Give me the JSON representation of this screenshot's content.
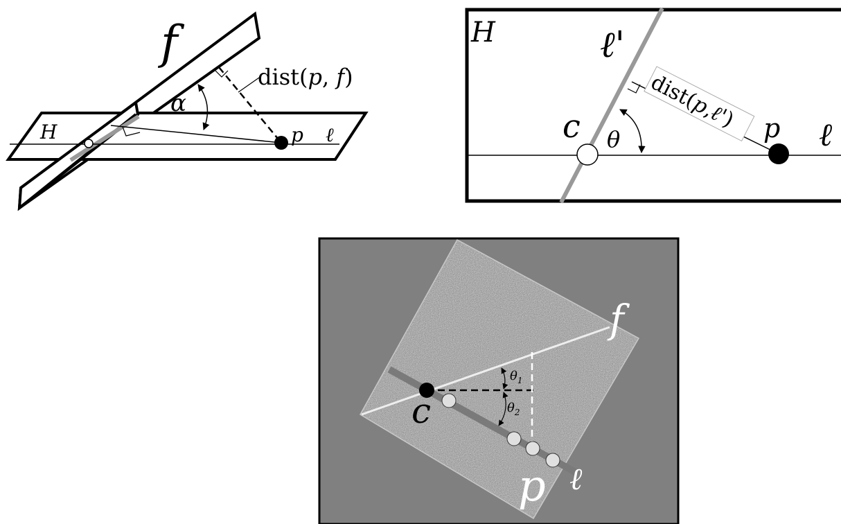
{
  "panel_a": {
    "label_f": "f",
    "label_H": "H",
    "label_alpha": "α",
    "label_p": "p",
    "label_l": "ℓ",
    "dist_prefix": "dist(",
    "dist_p": "p",
    "dist_comma": ", ",
    "dist_f": "f",
    "dist_suffix": ")"
  },
  "panel_b": {
    "label_H": "H",
    "label_lprime": "ℓ'",
    "label_c": "c",
    "label_theta": "θ",
    "label_p": "p",
    "label_l": "ℓ",
    "dist_prefix": "dist(",
    "dist_p": "p",
    "dist_comma": ",",
    "dist_l": "ℓ'",
    "dist_suffix": ")"
  },
  "panel_c": {
    "label_f": "f",
    "label_c": "c",
    "label_theta1": "θ",
    "label_theta1_sub": "1",
    "label_theta2": "θ",
    "label_theta2_sub": "2",
    "label_p": "p",
    "label_l": "ℓ"
  },
  "colors": {
    "line": "#000000",
    "gray_line": "#999999",
    "panel_bg": "#808080",
    "texture": "#a8a8a8",
    "white": "#ffffff"
  }
}
